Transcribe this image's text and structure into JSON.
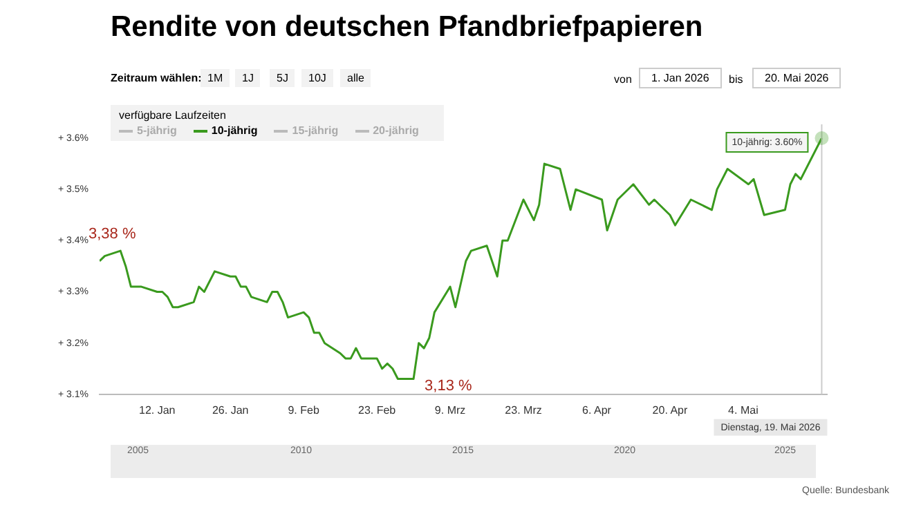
{
  "chart_data": {
    "type": "line",
    "title": "Rendite von deutschen Pfandbriefpapieren",
    "legend_title": "verfügbare Laufzeiten",
    "legend": "top left",
    "grid": false,
    "marker": "none",
    "line_style": "solid",
    "xlim": [
      "2026-01-01",
      "2026-05-20"
    ],
    "xticks": [
      {
        "value": "2026-01-12",
        "label": "12. Jan"
      },
      {
        "value": "2026-01-26",
        "label": "26. Jan"
      },
      {
        "value": "2026-02-09",
        "label": "9. Feb"
      },
      {
        "value": "2026-02-23",
        "label": "23. Feb"
      },
      {
        "value": "2026-03-09",
        "label": "9. Mrz"
      },
      {
        "value": "2026-03-23",
        "label": "23. Mrz"
      },
      {
        "value": "2026-04-06",
        "label": "6. Apr"
      },
      {
        "value": "2026-04-20",
        "label": "20. Apr"
      },
      {
        "value": "2026-05-04",
        "label": "4. Mai"
      }
    ],
    "ylim": [
      3.1,
      3.6
    ],
    "yticks": [
      {
        "value": 3.1,
        "label": "+ 3.1%"
      },
      {
        "value": 3.2,
        "label": "+ 3.2%"
      },
      {
        "value": 3.3,
        "label": "+ 3.3%"
      },
      {
        "value": 3.4,
        "label": "+ 3.4%"
      },
      {
        "value": 3.5,
        "label": "+ 3.5%"
      },
      {
        "value": 3.6,
        "label": "+ 3.6%"
      }
    ],
    "series": [
      {
        "name": "5-jährig",
        "color": "#bbbbbb"
      },
      {
        "name": "10-jährig",
        "color": "#3a9a1e",
        "x": [
          "2026-01-01",
          "2026-01-02",
          "2026-01-05",
          "2026-01-06",
          "2026-01-07",
          "2026-01-09",
          "2026-01-12",
          "2026-01-13",
          "2026-01-14",
          "2026-01-15",
          "2026-01-16",
          "2026-01-19",
          "2026-01-20",
          "2026-01-21",
          "2026-01-23",
          "2026-01-26",
          "2026-01-27",
          "2026-01-28",
          "2026-01-29",
          "2026-01-30",
          "2026-02-02",
          "2026-02-03",
          "2026-02-04",
          "2026-02-05",
          "2026-02-06",
          "2026-02-09",
          "2026-02-10",
          "2026-02-11",
          "2026-02-12",
          "2026-02-13",
          "2026-02-16",
          "2026-02-17",
          "2026-02-18",
          "2026-02-19",
          "2026-02-20",
          "2026-02-23",
          "2026-02-24",
          "2026-02-25",
          "2026-02-26",
          "2026-02-27",
          "2026-03-02",
          "2026-03-03",
          "2026-03-04",
          "2026-03-05",
          "2026-03-06",
          "2026-03-09",
          "2026-03-10",
          "2026-03-12",
          "2026-03-13",
          "2026-03-16",
          "2026-03-18",
          "2026-03-19",
          "2026-03-20",
          "2026-03-23",
          "2026-03-25",
          "2026-03-26",
          "2026-03-27",
          "2026-03-30",
          "2026-04-01",
          "2026-04-02",
          "2026-04-07",
          "2026-04-08",
          "2026-04-10",
          "2026-04-13",
          "2026-04-16",
          "2026-04-17",
          "2026-04-20",
          "2026-04-21",
          "2026-04-24",
          "2026-04-28",
          "2026-04-29",
          "2026-05-01",
          "2026-05-05",
          "2026-05-06",
          "2026-05-08",
          "2026-05-12",
          "2026-05-13",
          "2026-05-14",
          "2026-05-15",
          "2026-05-19"
        ],
        "values": [
          3.36,
          3.37,
          3.38,
          3.35,
          3.31,
          3.31,
          3.3,
          3.3,
          3.29,
          3.27,
          3.27,
          3.28,
          3.31,
          3.3,
          3.34,
          3.33,
          3.33,
          3.31,
          3.31,
          3.29,
          3.28,
          3.3,
          3.3,
          3.28,
          3.25,
          3.26,
          3.25,
          3.22,
          3.22,
          3.2,
          3.18,
          3.17,
          3.17,
          3.19,
          3.17,
          3.17,
          3.15,
          3.16,
          3.15,
          3.13,
          3.13,
          3.2,
          3.19,
          3.21,
          3.26,
          3.31,
          3.27,
          3.36,
          3.38,
          3.39,
          3.33,
          3.4,
          3.4,
          3.48,
          3.44,
          3.47,
          3.55,
          3.54,
          3.46,
          3.5,
          3.48,
          3.42,
          3.48,
          3.51,
          3.47,
          3.48,
          3.45,
          3.43,
          3.48,
          3.46,
          3.5,
          3.54,
          3.51,
          3.52,
          3.45,
          3.46,
          3.51,
          3.53,
          3.52,
          3.6
        ]
      },
      {
        "name": "15-jährig",
        "color": "#bbbbbb"
      },
      {
        "name": "20-jährig",
        "color": "#bbbbbb"
      }
    ],
    "ref_lines": [
      {
        "axis": "x",
        "value": "2026-05-19",
        "label": "Dienstag, 19. Mai 2026",
        "color": "#cccccc"
      }
    ],
    "annotations": [
      {
        "text": "3,38 %",
        "x": "2026-01-05",
        "y": 3.38
      },
      {
        "text": "3,13 %",
        "x": "2026-03-02",
        "y": 3.13
      },
      {
        "text": "10-jährig: 3.60%",
        "x": "2026-05-19",
        "y": 3.6
      },
      "Zeitraum wählen:",
      "1M",
      "1J",
      "5J",
      "10J",
      "alle",
      "von",
      "1. Jan 2026",
      "bis",
      "20. Mai 2026",
      "2005",
      "2010",
      "2015",
      "2020",
      "2025",
      "Quelle: Bundesbank"
    ]
  }
}
